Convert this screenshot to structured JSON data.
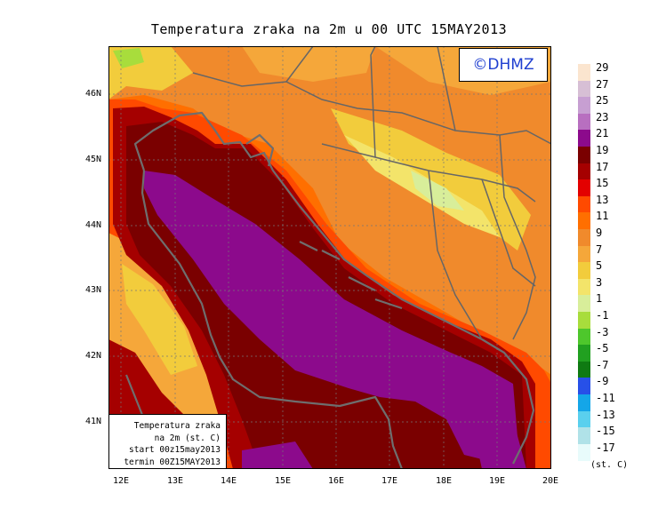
{
  "title": "Temperatura zraka na 2m u 00 UTC 15MAY2013",
  "logo": "©DHMZ",
  "info_box": [
    "Temperatura zraka",
    "na 2m (st. C)",
    "start 00z15may2013",
    "termin 00Z15MAY2013"
  ],
  "lat_labels": [
    "46N",
    "45N",
    "44N",
    "43N",
    "42N",
    "41N"
  ],
  "lon_labels": [
    "12E",
    "13E",
    "14E",
    "15E",
    "16E",
    "17E",
    "18E",
    "19E",
    "20E"
  ],
  "legend": {
    "levels": [
      "29",
      "27",
      "25",
      "23",
      "21",
      "19",
      "17",
      "15",
      "13",
      "11",
      "9",
      "7",
      "5",
      "3",
      "1",
      "-1",
      "-3",
      "-5",
      "-7",
      "-9",
      "-11",
      "-13",
      "-15",
      "-17"
    ],
    "colors": [
      "#fbe5cf",
      "#d7bfd5",
      "#c79fd2",
      "#b86fc0",
      "#8c0a8c",
      "#7a0000",
      "#a50000",
      "#e30000",
      "#ff4a00",
      "#ff6f00",
      "#f08a2c",
      "#f5a73a",
      "#f2cc3c",
      "#f3e46a",
      "#d8ee9a",
      "#a8dd3c",
      "#4ec72c",
      "#21a020",
      "#0f7a12",
      "#2750e8",
      "#14a6e8",
      "#5ad0ee",
      "#b0e2e8",
      "#e8fbfb"
    ],
    "unit": "(st. C)"
  }
}
